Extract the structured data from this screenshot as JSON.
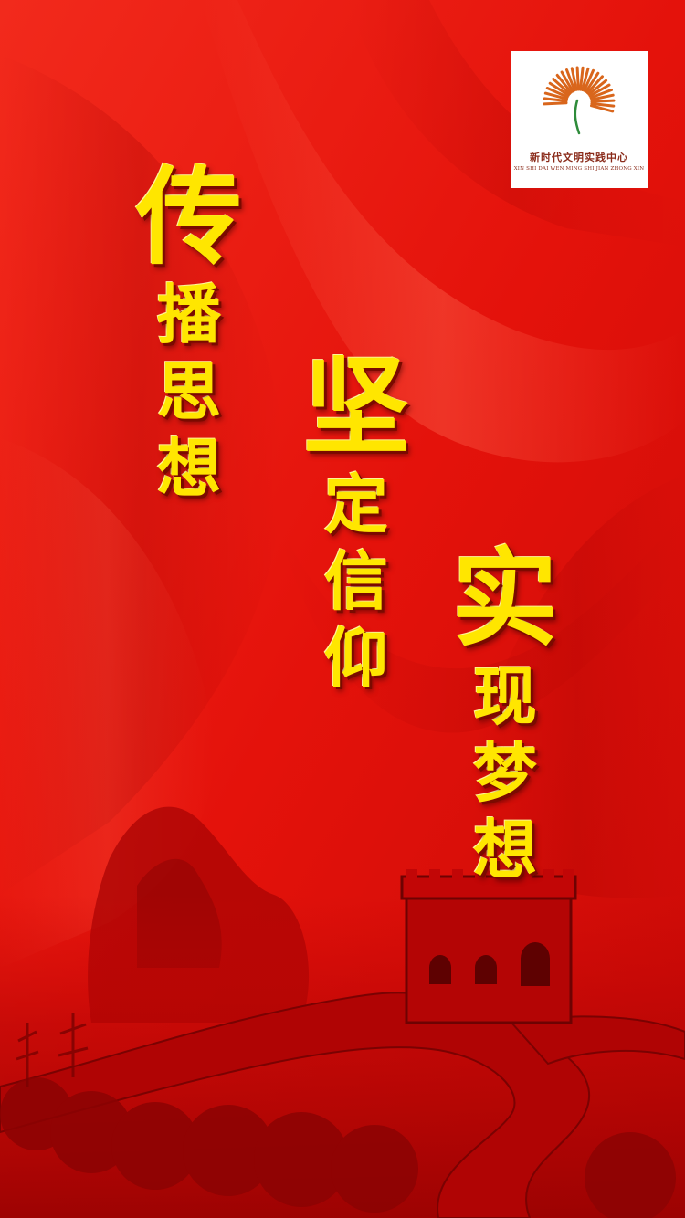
{
  "logo": {
    "title": "新时代文明实践中心",
    "subtitle": "XIN SHI DAI WEN MING SHI JIAN ZHONG XIN",
    "accent_color": "#d9661c",
    "stem_color": "#2e8b3a"
  },
  "slogans": [
    {
      "lead": "传",
      "rest": [
        "播",
        "思",
        "想"
      ]
    },
    {
      "lead": "坚",
      "rest": [
        "定",
        "信",
        "仰"
      ]
    },
    {
      "lead": "实",
      "rest": [
        "现",
        "梦",
        "想"
      ]
    }
  ],
  "colors": {
    "background": "#e8160f",
    "text": "#ffe600",
    "shadow": "#7a0a00"
  }
}
